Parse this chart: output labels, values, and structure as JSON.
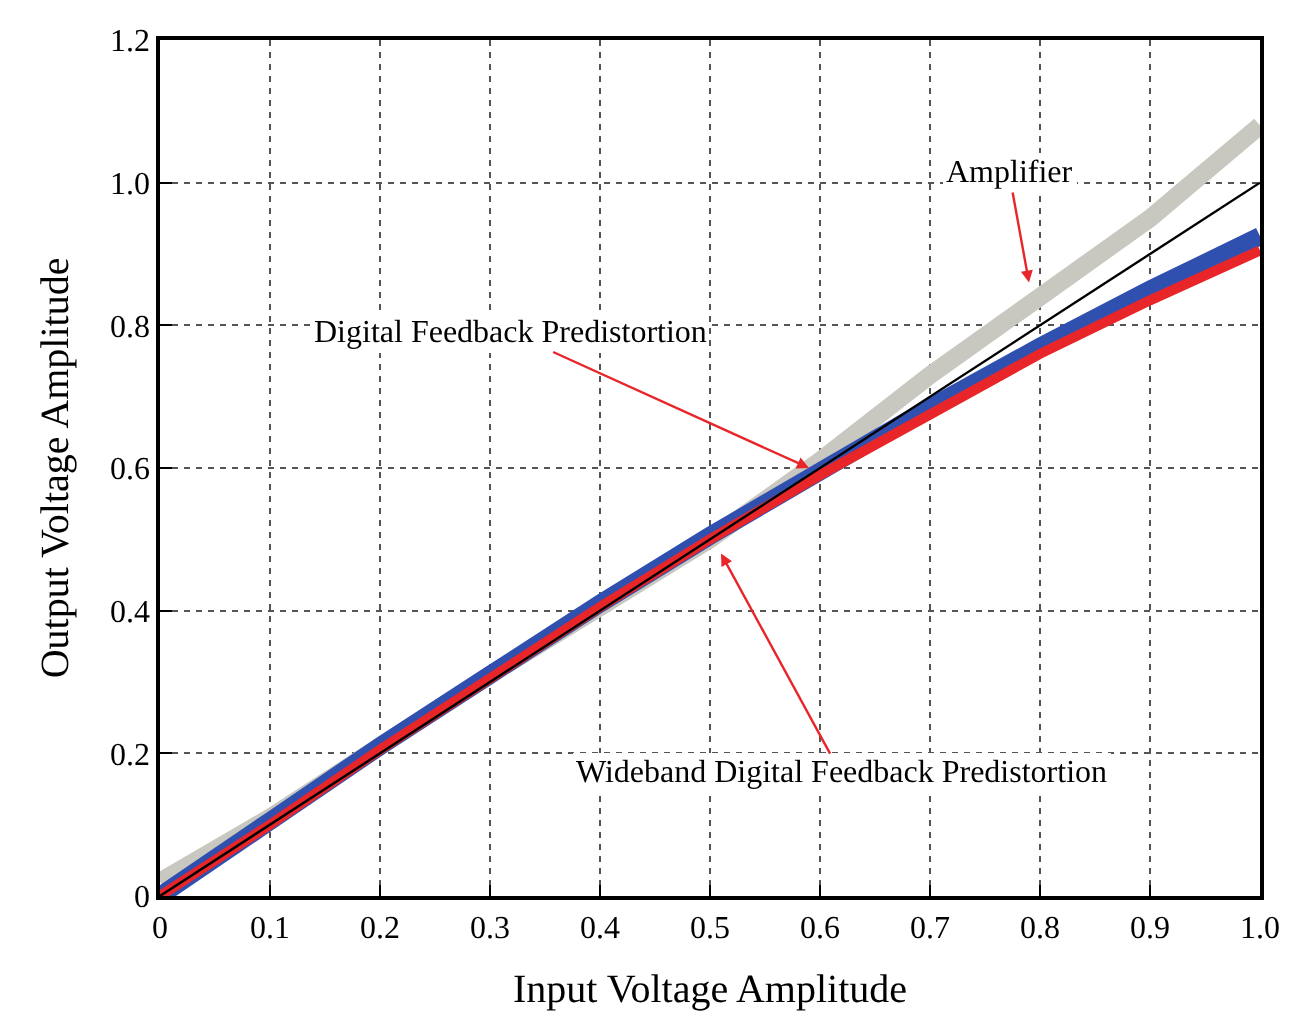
{
  "chart_data": {
    "type": "line",
    "xlabel": "Input Voltage Amplitude",
    "ylabel": "Output Voltage Amplitude",
    "x": [
      0,
      0.1,
      0.2,
      0.3,
      0.4,
      0.5,
      0.6,
      0.7,
      0.8,
      0.9,
      1.0
    ],
    "series": [
      {
        "color": "#c8c8c0",
        "values": [
          0.02,
          0.11,
          0.21,
          0.31,
          0.405,
          0.5,
          0.61,
          0.73,
          0.84,
          0.95,
          1.08
        ]
      },
      {
        "color": "#3050b0",
        "values": [
          0,
          0.105,
          0.21,
          0.31,
          0.41,
          0.505,
          0.595,
          0.685,
          0.77,
          0.85,
          0.925
        ]
      },
      {
        "color": "#e8262a",
        "values": [
          0,
          0.1,
          0.205,
          0.305,
          0.405,
          0.5,
          0.59,
          0.675,
          0.76,
          0.835,
          0.905
        ]
      },
      {
        "color": "#000000",
        "x": [
          0,
          1.0
        ],
        "values": [
          0,
          1.0
        ]
      }
    ],
    "annotations": [
      {
        "text": "Amplifier",
        "x": 0.79,
        "y": 0.86
      },
      {
        "text": "Digital Feedback Predistortion",
        "x": 0.59,
        "y": 0.6
      },
      {
        "text": "Wideband Digital Feedback Predistortion",
        "x": 0.51,
        "y": 0.48
      }
    ],
    "xlim": [
      0,
      1.0
    ],
    "ylim": [
      0,
      1.2
    ],
    "xticks": [
      0,
      0.1,
      0.2,
      0.3,
      0.4,
      0.5,
      0.6,
      0.7,
      0.8,
      0.9,
      {
        "value": 1.0,
        "label": "1.0"
      }
    ],
    "yticks": [
      0,
      0.2,
      0.4,
      0.6,
      0.8,
      {
        "value": 1.0,
        "label": "1.0"
      },
      1.2
    ],
    "grid": true,
    "marker": "none",
    "line_style": "solid"
  }
}
